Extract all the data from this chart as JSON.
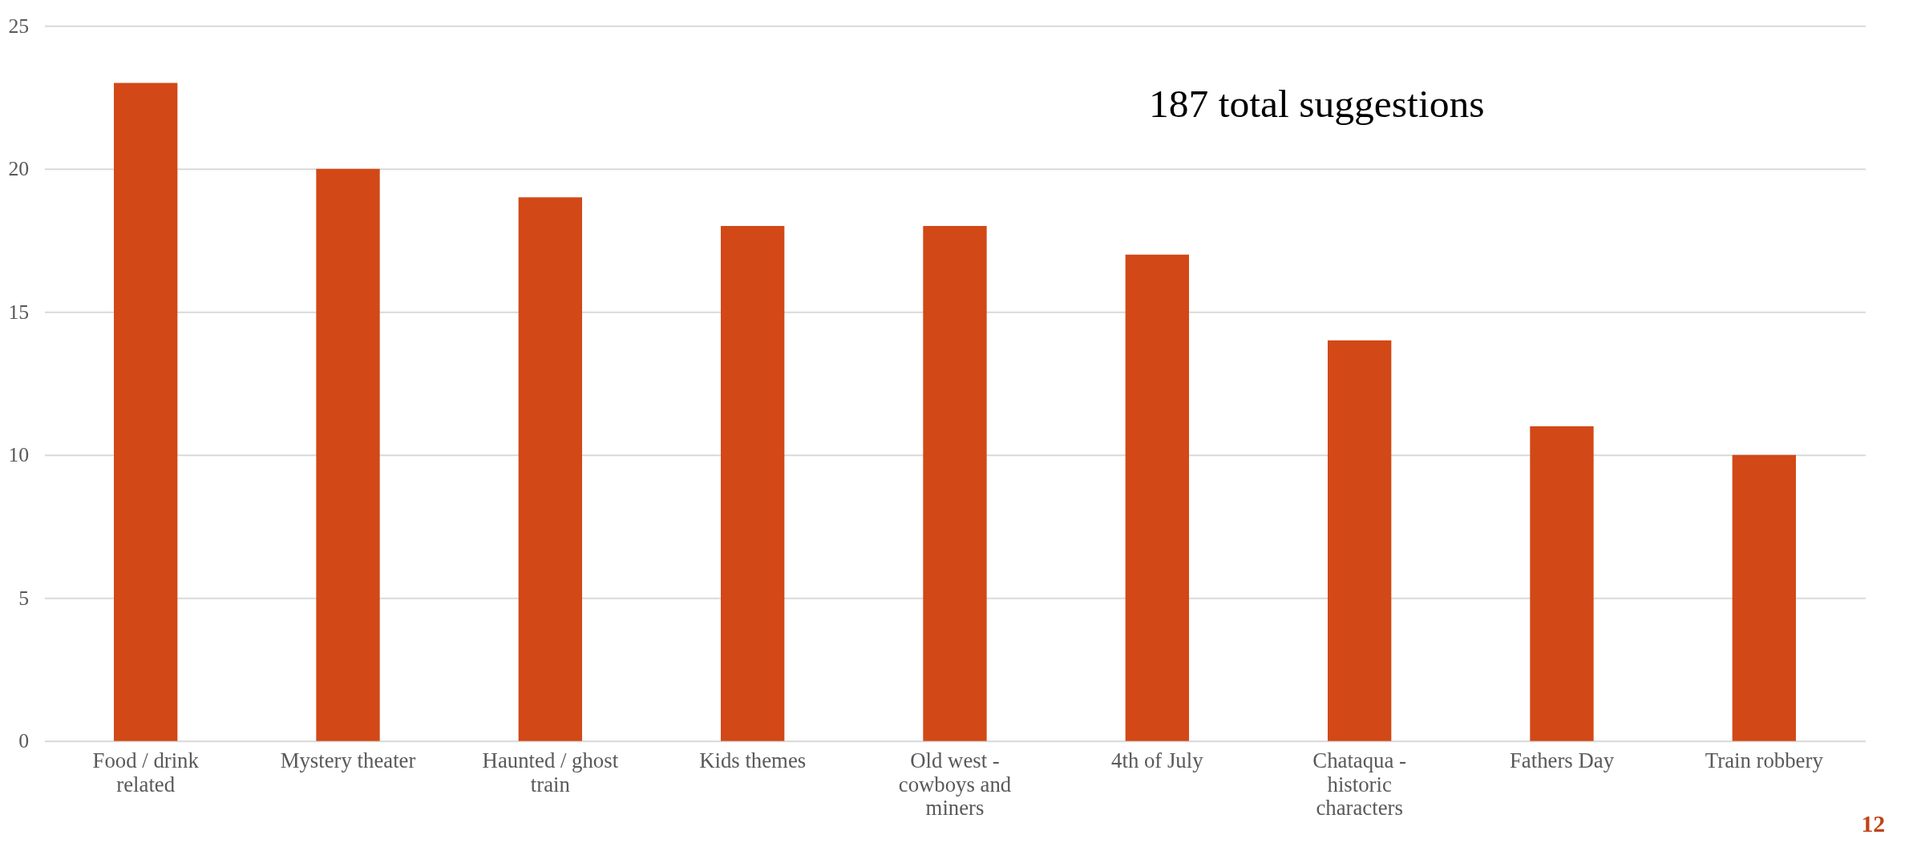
{
  "chart_data": {
    "type": "bar",
    "categories": [
      "Food / drink related",
      "Mystery theater",
      "Haunted / ghost train",
      "Kids themes",
      "Old west - cowboys and miners",
      "4th of July",
      "Chataqua - historic characters",
      "Fathers Day",
      "Train robbery"
    ],
    "values": [
      23,
      20,
      19,
      18,
      18,
      17,
      14,
      11,
      10
    ],
    "color": "#d24817",
    "ylim": [
      0,
      25
    ],
    "yticks": [
      0,
      5,
      10,
      15,
      20,
      25
    ],
    "grid": "y",
    "annotations": [
      "187 total suggestions",
      "12"
    ]
  }
}
